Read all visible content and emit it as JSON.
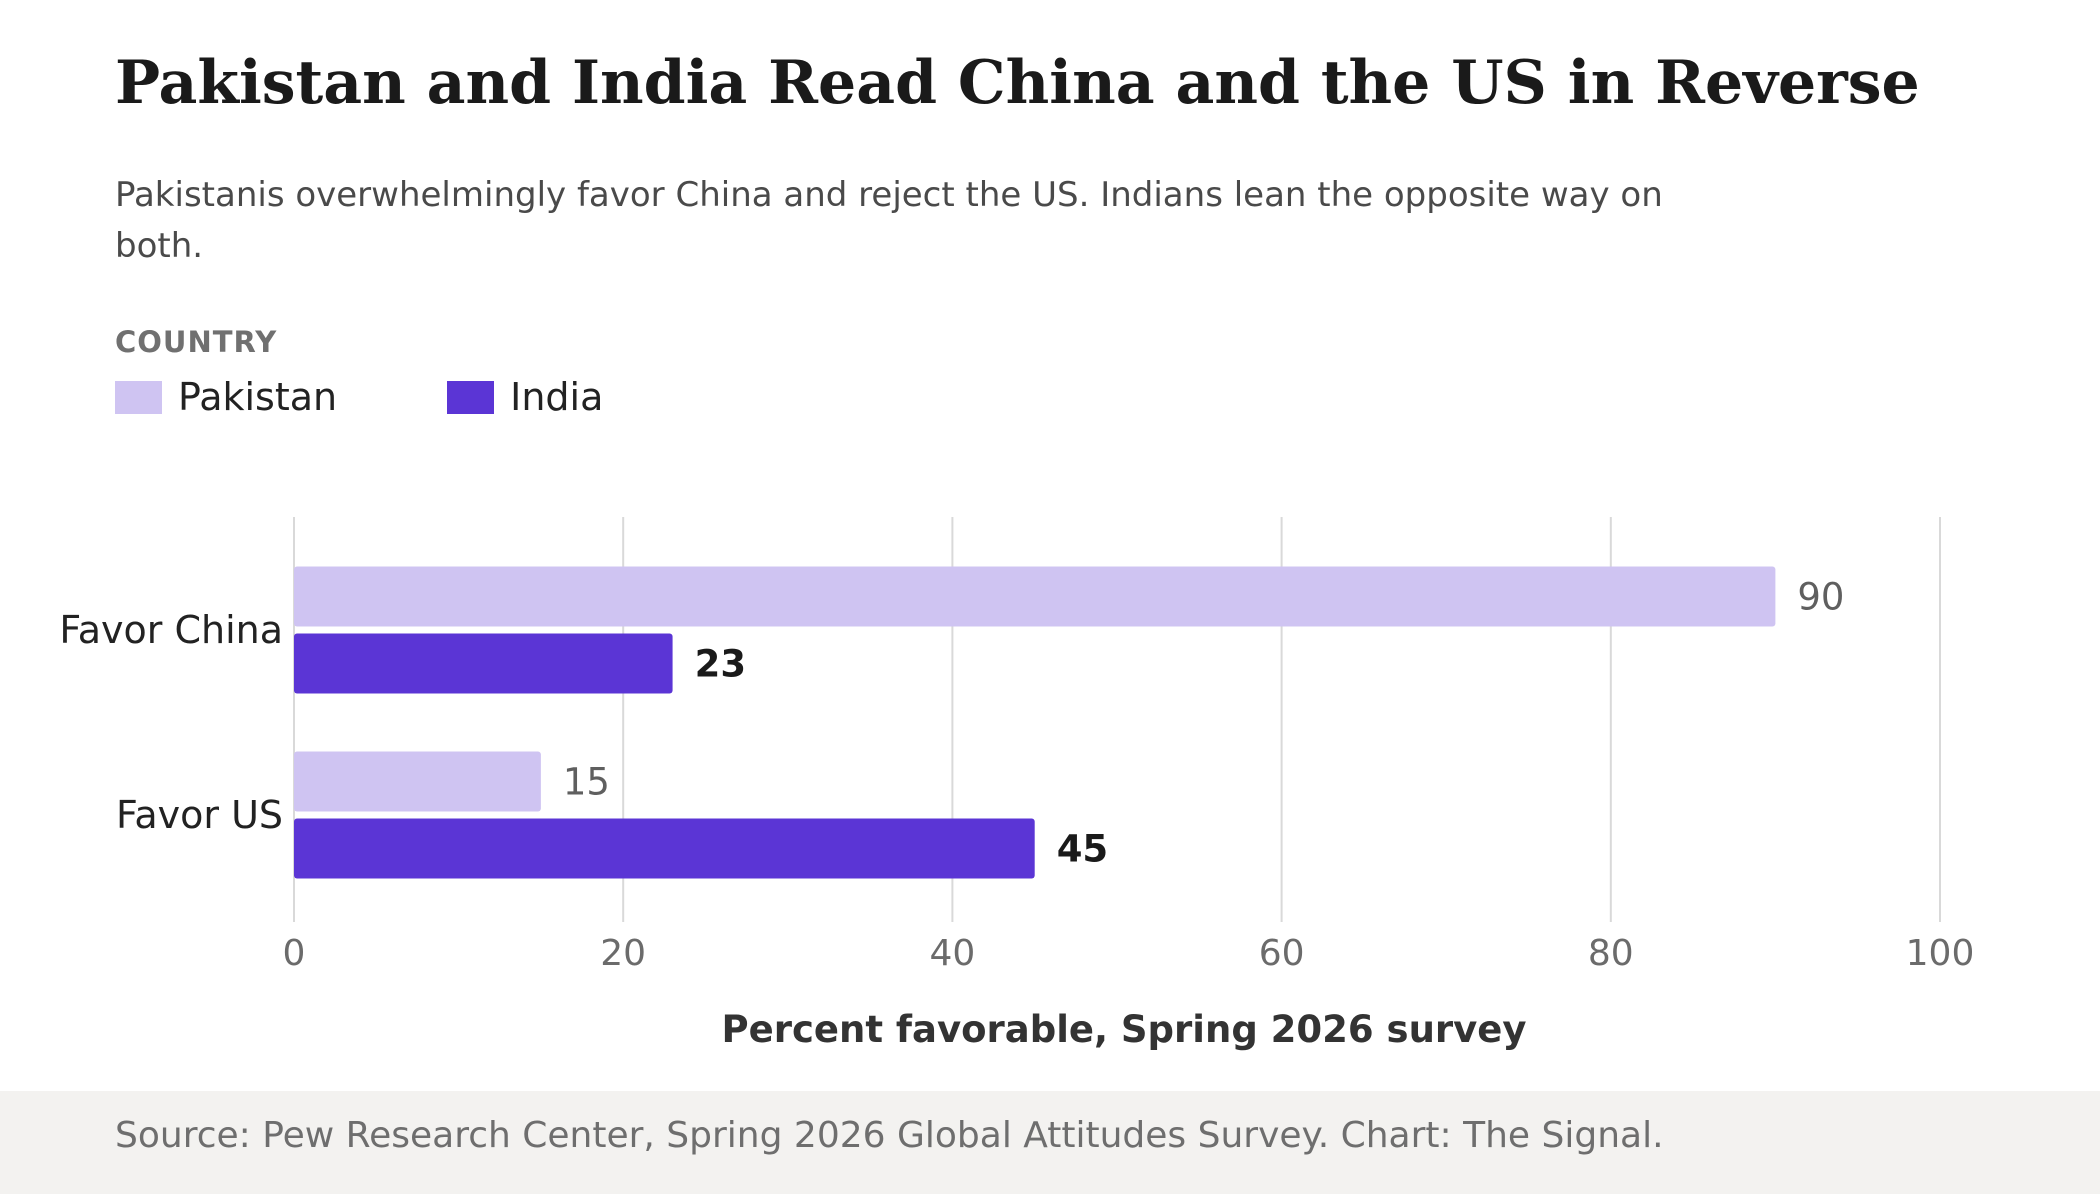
{
  "title": "Pakistan and India Read China and the US in Reverse",
  "subtitle": "Pakistanis overwhelmingly favor China and reject the US. Indians lean the opposite way on both.",
  "legend_title": "COUNTRY",
  "source": "Source: Pew Research Center, Spring 2026 Global Attitudes Survey. Chart: The Signal.",
  "chart_data": {
    "type": "bar",
    "orientation": "horizontal",
    "categories": [
      "Favor China",
      "Favor US"
    ],
    "series": [
      {
        "name": "Pakistan",
        "color": "#cfc4f2",
        "values": [
          90,
          15
        ],
        "label_color": "#5f5f5f",
        "label_bold": false
      },
      {
        "name": "India",
        "color": "#5b35d5",
        "values": [
          23,
          45
        ],
        "label_color": "#1a1a1a",
        "label_bold": true
      }
    ],
    "xlabel": "Percent favorable, Spring 2026 survey",
    "xlim": [
      0,
      100
    ],
    "xticks": [
      0,
      20,
      40,
      60,
      80,
      100
    ],
    "grid": true,
    "legend": "top-left"
  }
}
